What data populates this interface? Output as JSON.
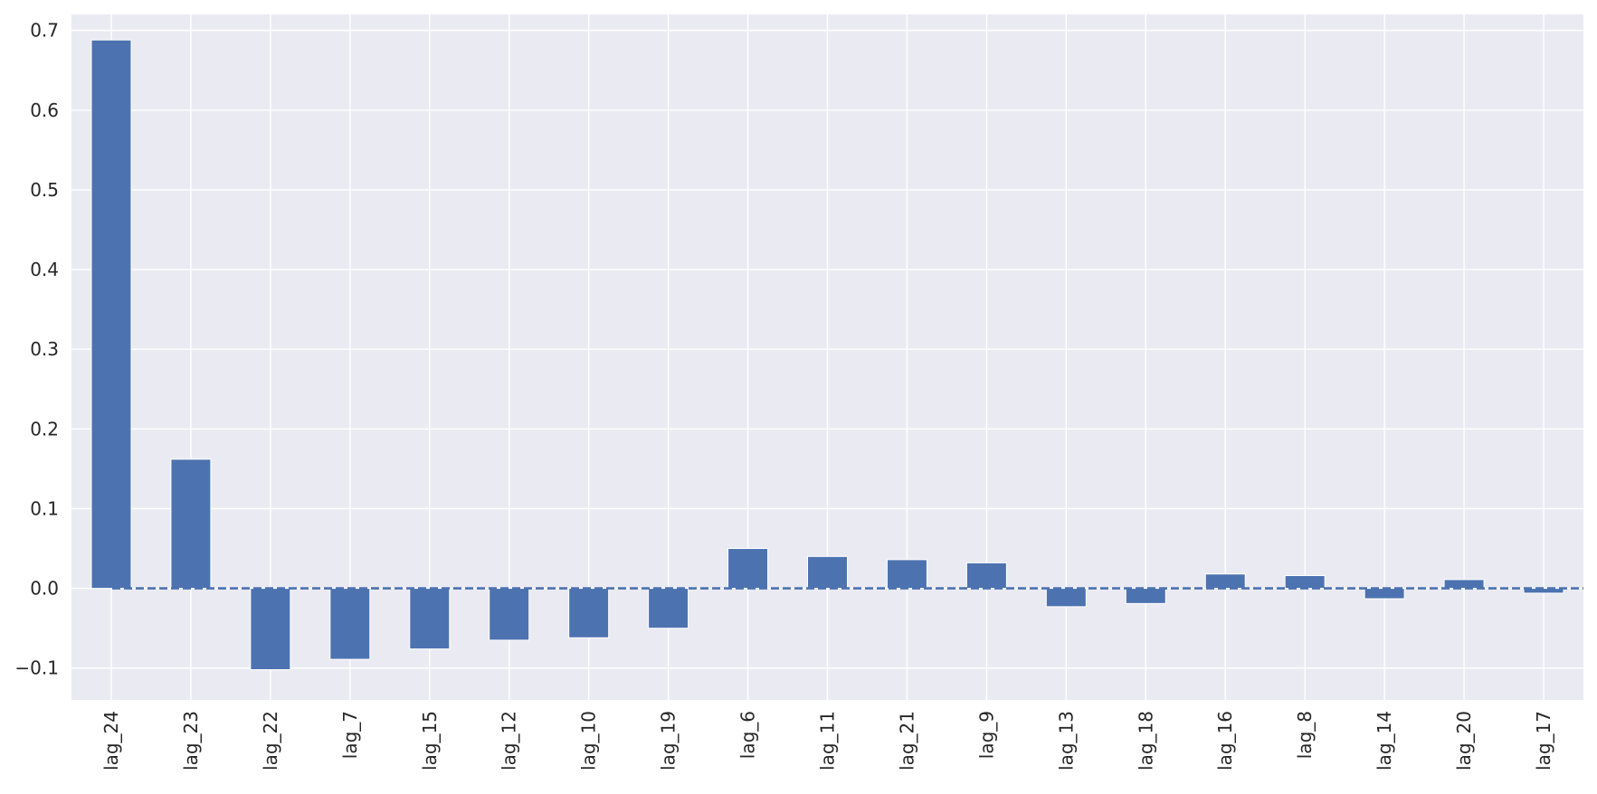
{
  "chart_data": {
    "type": "bar",
    "title": "",
    "xlabel": "",
    "ylabel": "",
    "categories": [
      "lag_24",
      "lag_23",
      "lag_22",
      "lag_7",
      "lag_15",
      "lag_12",
      "lag_10",
      "lag_19",
      "lag_6",
      "lag_11",
      "lag_21",
      "lag_9",
      "lag_13",
      "lag_18",
      "lag_16",
      "lag_8",
      "lag_14",
      "lag_20",
      "lag_17"
    ],
    "values": [
      0.688,
      0.162,
      -0.102,
      -0.089,
      -0.076,
      -0.065,
      -0.062,
      -0.05,
      0.05,
      0.04,
      0.036,
      0.032,
      -0.023,
      -0.019,
      0.018,
      0.016,
      -0.013,
      0.011,
      -0.006
    ],
    "ylim": [
      -0.14,
      0.72
    ],
    "yticks": [
      -0.1,
      0.0,
      0.1,
      0.2,
      0.3,
      0.4,
      0.5,
      0.6,
      0.7
    ],
    "ytick_labels": [
      "−0.1",
      "0.0",
      "0.1",
      "0.2",
      "0.3",
      "0.4",
      "0.5",
      "0.6",
      "0.7"
    ],
    "reference_line": {
      "y": 0.0,
      "style": "dashed"
    },
    "grid": true,
    "legend": "none",
    "colors": {
      "bar": "#4c72b0",
      "plot_background": "#eaeaf2",
      "grid": "#ffffff",
      "reference_line": "#4c72b0"
    }
  }
}
